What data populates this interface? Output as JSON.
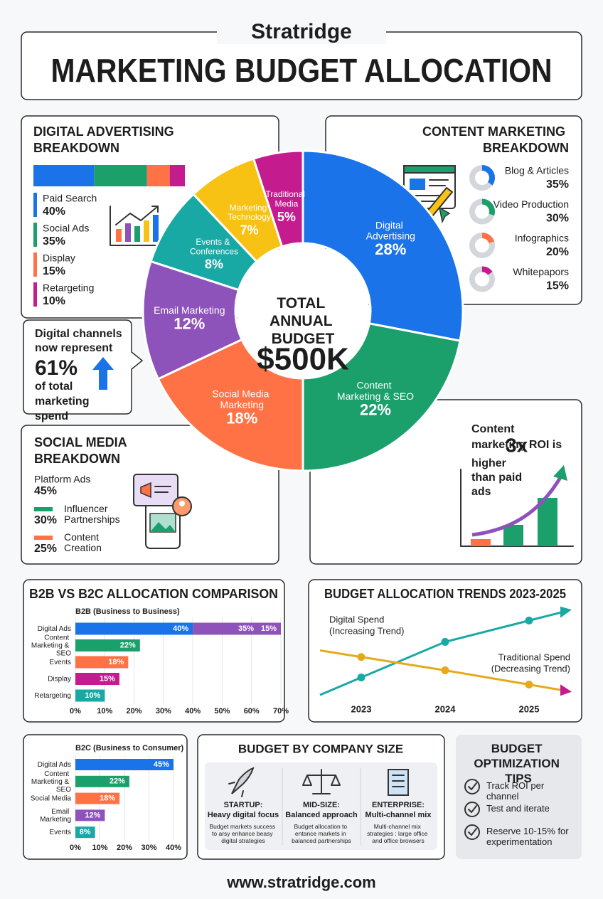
{
  "header": {
    "brand": "Stratridge",
    "title": "MARKETING BUDGET ALLOCATION"
  },
  "chart_data": [
    {
      "type": "donut",
      "center_title": "TOTAL ANNUAL BUDGET",
      "center_value": "$500K",
      "categories": [
        "Digital Advertising",
        "Content Marketing & SEO",
        "Social Media Marketing",
        "Email Marketing",
        "Events & Conferences",
        "Marketing Technology",
        "Traditional Media"
      ],
      "values": [
        28,
        22,
        18,
        12,
        8,
        7,
        5
      ],
      "value_labels": [
        "28%",
        "22%",
        "18%",
        "12%",
        "8%",
        "7%",
        "5%"
      ],
      "colors": [
        "#1a73e8",
        "#1ba06c",
        "#ff7246",
        "#8e52bb",
        "#18a9a5",
        "#f7c214",
        "#c41c8e"
      ]
    },
    {
      "type": "stacked-bar",
      "title": "DIGITAL ADVERTISING BREAKDOWN",
      "categories": [
        "Paid Search",
        "Social Ads",
        "Display",
        "Retargeting"
      ],
      "values": [
        40,
        35,
        15,
        10
      ],
      "value_labels": [
        "40%",
        "35%",
        "15%",
        "10%"
      ],
      "colors": [
        "#1a73e8",
        "#1ba06c",
        "#ff7246",
        "#c41c8e"
      ]
    },
    {
      "type": "ring-list",
      "title": "CONTENT MARKETING BREAKDOWN",
      "categories": [
        "Blog & Articles",
        "Video Production",
        "Infographics",
        "Whitepapors"
      ],
      "values": [
        35,
        30,
        20,
        15
      ],
      "value_labels": [
        "35%",
        "30%",
        "20%",
        "15%"
      ],
      "colors": [
        "#1a73e8",
        "#1ba06c",
        "#ff7246",
        "#c41c8e"
      ]
    },
    {
      "type": "list",
      "title": "SOCIAL MEDIA BREAKDOWN",
      "categories": [
        "Platform Ads",
        "Influencer Partnerships",
        "Content Creation"
      ],
      "values": [
        45,
        30,
        25
      ],
      "value_labels": [
        "45%",
        "30%",
        "25%"
      ],
      "colors": [
        null,
        "#1ba06c",
        "#ff7246"
      ]
    },
    {
      "type": "bar",
      "title": "B2B VS B2C ALLOCATION COMPARISON",
      "subtitle": "B2B (Business to Business)",
      "categories": [
        "Digital Ads",
        "Content Marketing & SEO",
        "Events",
        "Display",
        "Retargeting"
      ],
      "values": [
        [
          40,
          35,
          15
        ],
        [
          22
        ],
        [
          18
        ],
        [
          15
        ],
        [
          10
        ]
      ],
      "value_labels": [
        [
          "40%",
          "35%",
          "15%"
        ],
        [
          "22%"
        ],
        [
          "18%"
        ],
        [
          "15%"
        ],
        [
          "10%"
        ]
      ],
      "colors": [
        [
          "#1a73e8",
          "#8e52bb",
          "#f7c214"
        ],
        [
          "#1ba06c"
        ],
        [
          "#ff7246"
        ],
        [
          "#c41c8e"
        ],
        [
          "#18a9a5"
        ]
      ],
      "xlim": [
        0,
        70
      ],
      "xticks": [
        {
          "value": 0,
          "label": "0%"
        },
        {
          "value": 10,
          "label": "10%"
        },
        {
          "value": 20,
          "label": "20%"
        },
        {
          "value": 30,
          "label": "30%"
        },
        {
          "value": 40,
          "label": "40%"
        },
        {
          "value": 50,
          "label": "50%"
        },
        {
          "value": 60,
          "label": "60%"
        },
        {
          "value": 70,
          "label": "70%"
        }
      ],
      "grid": true
    },
    {
      "type": "bar",
      "subtitle": "B2C (Business to Consumer)",
      "categories": [
        "Digital Ads",
        "Content Marketing & SEO",
        "Social Media",
        "Email Marketing",
        "Events"
      ],
      "values": [
        [
          45
        ],
        [
          22
        ],
        [
          18
        ],
        [
          12
        ],
        [
          8
        ]
      ],
      "value_labels": [
        [
          "45%"
        ],
        [
          "22%"
        ],
        [
          "18%"
        ],
        [
          "12%"
        ],
        [
          "8%"
        ]
      ],
      "colors": [
        [
          "#1a73e8"
        ],
        [
          "#1ba06c"
        ],
        [
          "#ff7246"
        ],
        [
          "#8e52bb"
        ],
        [
          "#18a9a5"
        ]
      ],
      "xlim": [
        0,
        40
      ],
      "xticks": [
        {
          "value": 0,
          "label": "0%"
        },
        {
          "value": 10,
          "label": "10%"
        },
        {
          "value": 20,
          "label": "20%"
        },
        {
          "value": 30,
          "label": "30%"
        },
        {
          "value": 40,
          "label": "40%"
        }
      ],
      "grid": true
    },
    {
      "type": "line",
      "title": "BUDGET ALLOCATION TRENDS 2023-2025",
      "categories": [
        "2023",
        "2024",
        "2025"
      ],
      "ylim": [
        0,
        100
      ],
      "series": [
        {
          "name": "Digital Spend",
          "label": "(Increasing Trend)",
          "color": "#18a9a5",
          "values": [
            26,
            66,
            90
          ]
        },
        {
          "name": "Traditional Spend",
          "label": "(Decreasing Trend)",
          "color": "#e6a91c",
          "values": [
            49,
            34,
            18
          ]
        }
      ]
    }
  ],
  "callouts": {
    "digital_share": {
      "lead": "Digital channels now represent",
      "value": "61%",
      "tail": "of total marketing spend"
    },
    "roi": {
      "lead": "Content marketing ROI is",
      "value": "3x",
      "tail": "higher than paid ads"
    }
  },
  "company_size": {
    "title": "BUDGET BY COMPANY SIZE",
    "columns": [
      {
        "label": "STARTUP:",
        "focus": "Heavy digital focus",
        "text": "Budget markets success to arsy enhance beasy digital strategies"
      },
      {
        "label": "MID-SIZE:",
        "focus": "Balanced approach",
        "text": "Budget allocation to entance markets in balanced partnerships"
      },
      {
        "label": "ENTERPRISE:",
        "focus": "Multi-channel mix",
        "text": "Multi-channel mix strategies : large office and office browsers"
      }
    ]
  },
  "tips": {
    "title": "BUDGET OPTIMIZATION TIPS",
    "items": [
      "Track ROI per channel",
      "Test and iterate",
      "Reserve 10-15% for experimentation"
    ]
  },
  "footer": "www.stratridge.com"
}
